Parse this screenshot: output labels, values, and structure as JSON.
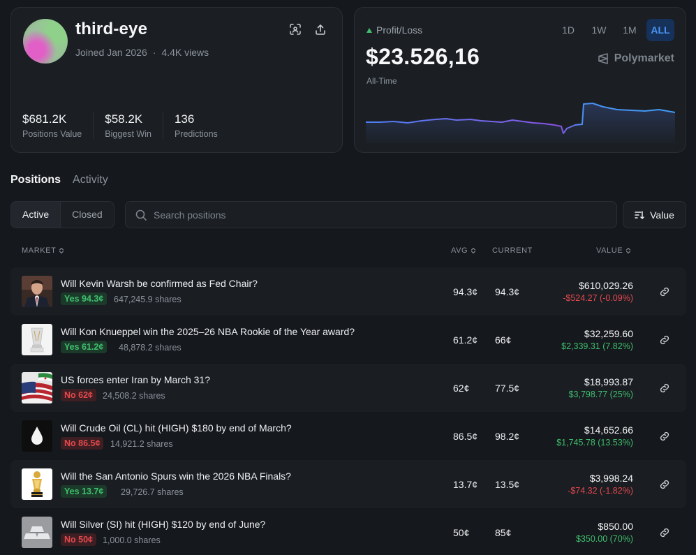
{
  "profile": {
    "username": "third-eye",
    "joined": "Joined Jan 2026",
    "views": "4.4K views",
    "stats": [
      {
        "value": "$681.2K",
        "label": "Positions Value"
      },
      {
        "value": "$58.2K",
        "label": "Biggest Win"
      },
      {
        "value": "136",
        "label": "Predictions"
      }
    ],
    "icons": [
      "scan-icon",
      "share-icon"
    ]
  },
  "pnl": {
    "label": "Profit/Loss",
    "value": "$23.526,16",
    "period": "All-Time",
    "brand": "Polymarket",
    "ranges": [
      "1D",
      "1W",
      "1M",
      "ALL"
    ],
    "active_range": "ALL",
    "accent_color": "#4c95f5"
  },
  "tabs": [
    {
      "label": "Positions",
      "active": true
    },
    {
      "label": "Activity",
      "active": false
    }
  ],
  "filters": {
    "segments": [
      {
        "label": "Active",
        "active": true
      },
      {
        "label": "Closed",
        "active": false
      }
    ],
    "search_placeholder": "Search positions",
    "sort_label": "Value"
  },
  "table": {
    "headers": {
      "market": "MARKET",
      "avg": "AVG",
      "current": "CURRENT",
      "value": "VALUE"
    },
    "rows": [
      {
        "title": "Will Kevin Warsh be confirmed as Fed Chair?",
        "badge": "Yes 94.3¢",
        "side": "yes",
        "shares": "647,245.9 shares",
        "avg": "94.3¢",
        "current": "94.3¢",
        "value": "$610,029.26",
        "change": "-$524.27 (-0.09%)",
        "dir": "neg",
        "thumb": "portrait"
      },
      {
        "title": "Will Kon Knueppel win the 2025–26 NBA Rookie of the Year award?",
        "badge": "Yes 61.2¢",
        "side": "yes",
        "shares": "48,878.2 shares",
        "avg": "61.2¢",
        "current": "66¢",
        "value": "$32,259.60",
        "change": "$2,339.31 (7.82%)",
        "dir": "pos",
        "thumb": "trophy-glass"
      },
      {
        "title": "US forces enter Iran by March 31?",
        "badge": "No 62¢",
        "side": "no",
        "shares": "24,508.2 shares",
        "avg": "62¢",
        "current": "77.5¢",
        "value": "$18,993.87",
        "change": "$3,798.77 (25%)",
        "dir": "pos",
        "thumb": "flags"
      },
      {
        "title": "Will Crude Oil (CL) hit (HIGH) $180 by end of March?",
        "badge": "No 86.5¢",
        "side": "no",
        "shares": "14,921.2 shares",
        "avg": "86.5¢",
        "current": "98.2¢",
        "value": "$14,652.66",
        "change": "$1,745.78 (13.53%)",
        "dir": "pos",
        "thumb": "oil-drop"
      },
      {
        "title": "Will the San Antonio Spurs win the 2026 NBA Finals?",
        "badge": "Yes 13.7¢",
        "side": "yes",
        "shares": "29,726.7 shares",
        "avg": "13.7¢",
        "current": "13.5¢",
        "value": "$3,998.24",
        "change": "-$74.32 (-1.82%)",
        "dir": "neg",
        "thumb": "trophy-gold"
      },
      {
        "title": "Will Silver (SI) hit (HIGH) $120 by end of June?",
        "badge": "No 50¢",
        "side": "no",
        "shares": "1,000.0 shares",
        "avg": "50¢",
        "current": "85¢",
        "value": "$850.00",
        "change": "$350.00 (70%)",
        "dir": "pos",
        "thumb": "silver-bars"
      }
    ]
  }
}
